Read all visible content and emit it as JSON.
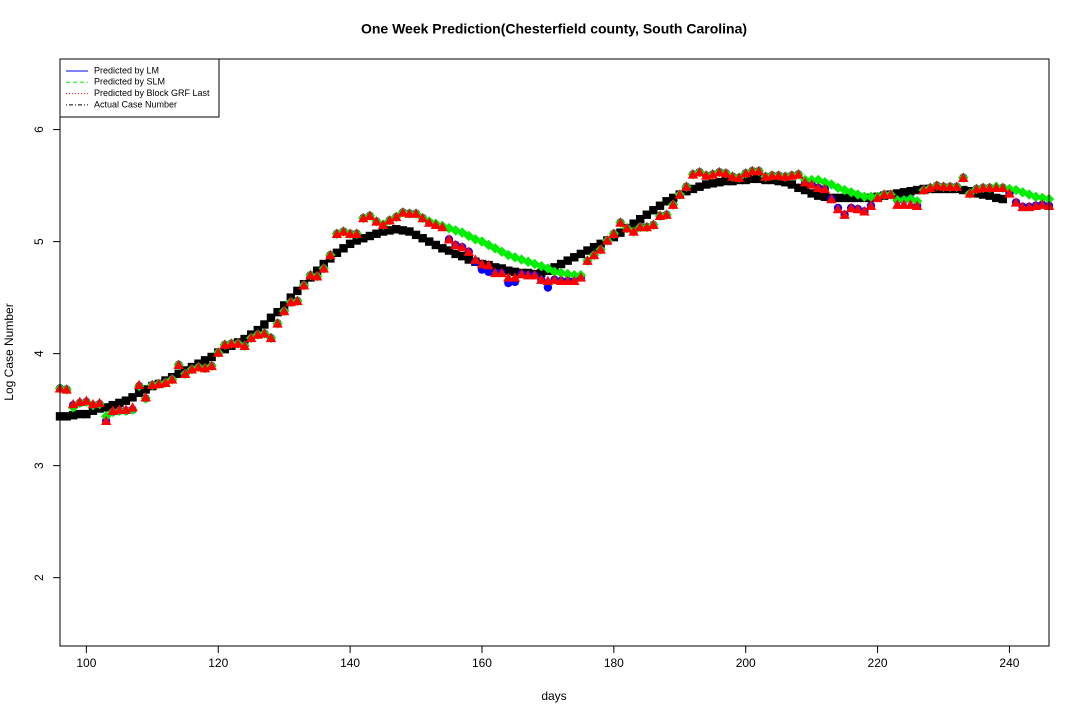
{
  "chart_data": {
    "type": "scatter",
    "title": "One Week Prediction(Chesterfield county, South Carolina)",
    "x_label": "days",
    "y_label": "Log Case Number",
    "xlim": [
      96,
      246
    ],
    "ylim": [
      1.39,
      6.63
    ],
    "xticks": [
      100,
      120,
      140,
      160,
      180,
      200,
      220,
      240
    ],
    "yticks": [
      2,
      3,
      4,
      5,
      6
    ],
    "legend": "top-left",
    "x": [
      96,
      97,
      98,
      99,
      100,
      101,
      102,
      103,
      104,
      105,
      106,
      107,
      108,
      109,
      110,
      111,
      112,
      113,
      114,
      115,
      116,
      117,
      118,
      119,
      120,
      121,
      122,
      123,
      124,
      125,
      126,
      127,
      128,
      129,
      130,
      131,
      132,
      133,
      134,
      135,
      136,
      137,
      138,
      139,
      140,
      141,
      142,
      143,
      144,
      145,
      146,
      147,
      148,
      149,
      150,
      151,
      152,
      153,
      154,
      155,
      156,
      157,
      158,
      159,
      160,
      161,
      162,
      163,
      164,
      165,
      166,
      167,
      168,
      169,
      170,
      171,
      172,
      173,
      174,
      175,
      176,
      177,
      178,
      179,
      180,
      181,
      182,
      183,
      184,
      185,
      186,
      187,
      188,
      189,
      190,
      191,
      192,
      193,
      194,
      195,
      196,
      197,
      198,
      199,
      200,
      201,
      202,
      203,
      204,
      205,
      206,
      207,
      208,
      209,
      210,
      211,
      212,
      213,
      214,
      215,
      216,
      217,
      218,
      219,
      220,
      221,
      222,
      223,
      224,
      225,
      226,
      227,
      228,
      229,
      230,
      231,
      232,
      233,
      234,
      235,
      236,
      237,
      238,
      239,
      240,
      241,
      242,
      243,
      244,
      245,
      246
    ],
    "series": [
      {
        "name": "Actual Case Number",
        "color": "black",
        "linestyle": "dotdash",
        "marker": "square",
        "values": [
          3.44,
          3.44,
          3.45,
          3.46,
          3.46,
          3.49,
          3.51,
          3.52,
          3.54,
          3.56,
          3.58,
          3.61,
          3.65,
          3.68,
          3.71,
          3.73,
          3.76,
          3.79,
          3.82,
          3.85,
          3.88,
          3.91,
          3.94,
          3.97,
          4.01,
          4.04,
          4.07,
          4.1,
          4.13,
          4.17,
          4.21,
          4.26,
          4.32,
          4.37,
          4.43,
          4.5,
          4.56,
          4.62,
          4.68,
          4.74,
          4.8,
          4.85,
          4.9,
          4.94,
          4.98,
          5.01,
          5.03,
          5.05,
          5.07,
          5.09,
          5.1,
          5.11,
          5.1,
          5.09,
          5.06,
          5.03,
          5.0,
          4.97,
          4.94,
          4.92,
          4.89,
          4.87,
          4.84,
          4.82,
          4.8,
          4.79,
          4.77,
          4.76,
          4.74,
          4.73,
          4.72,
          4.72,
          4.71,
          4.72,
          4.74,
          4.77,
          4.8,
          4.83,
          4.86,
          4.89,
          4.92,
          4.95,
          4.98,
          5.01,
          5.04,
          5.08,
          5.12,
          5.16,
          5.2,
          5.24,
          5.28,
          5.32,
          5.36,
          5.39,
          5.42,
          5.45,
          5.47,
          5.49,
          5.51,
          5.52,
          5.53,
          5.54,
          5.54,
          5.55,
          5.55,
          5.56,
          5.56,
          5.55,
          5.55,
          5.54,
          5.53,
          5.51,
          5.48,
          5.46,
          5.43,
          5.41,
          5.4,
          5.39,
          5.39,
          5.39,
          5.39,
          5.39,
          5.39,
          5.39,
          5.4,
          5.41,
          5.42,
          5.43,
          5.44,
          5.45,
          5.46,
          5.47,
          5.47,
          5.47,
          5.47,
          5.47,
          5.47,
          5.46,
          5.45,
          5.43,
          5.42,
          5.41,
          5.39,
          5.38,
          null,
          null,
          null,
          null,
          null,
          null,
          null
        ]
      },
      {
        "name": "Predicted by LM",
        "color": "blue",
        "linestyle": "solid",
        "marker": "circle",
        "values": [
          3.69,
          3.68,
          3.54,
          3.56,
          3.57,
          3.54,
          3.55,
          3.4,
          3.48,
          3.49,
          3.49,
          3.5,
          3.71,
          3.6,
          3.72,
          3.73,
          3.74,
          3.77,
          3.9,
          3.82,
          3.86,
          3.88,
          3.87,
          3.89,
          4.01,
          4.08,
          4.09,
          4.09,
          4.07,
          4.14,
          4.17,
          4.18,
          4.14,
          4.27,
          4.38,
          4.46,
          4.47,
          4.61,
          4.7,
          4.69,
          4.76,
          4.88,
          5.07,
          5.09,
          5.07,
          5.07,
          5.21,
          5.23,
          5.18,
          5.15,
          5.19,
          5.22,
          5.26,
          5.25,
          5.25,
          5.21,
          5.17,
          5.15,
          5.13,
          5.02,
          4.97,
          4.95,
          4.91,
          4.82,
          4.75,
          4.73,
          4.72,
          4.72,
          4.63,
          4.64,
          4.71,
          4.7,
          4.7,
          4.66,
          4.59,
          4.66,
          4.65,
          4.65,
          4.65,
          4.68,
          4.83,
          4.88,
          4.93,
          5.01,
          5.07,
          5.17,
          5.12,
          5.09,
          5.13,
          5.13,
          5.15,
          5.23,
          5.24,
          5.33,
          5.42,
          5.49,
          5.6,
          5.62,
          5.59,
          5.6,
          5.62,
          5.61,
          5.58,
          5.57,
          5.61,
          5.63,
          5.63,
          5.58,
          5.59,
          5.59,
          5.58,
          5.59,
          5.6,
          5.53,
          5.51,
          5.48,
          5.47,
          5.38,
          5.3,
          5.24,
          5.3,
          5.29,
          5.27,
          5.32,
          5.39,
          5.42,
          5.42,
          5.37,
          5.37,
          5.38,
          5.32,
          5.46,
          5.48,
          5.5,
          5.49,
          5.49,
          5.49,
          5.57,
          5.43,
          5.47,
          5.48,
          5.48,
          5.48,
          5.48,
          5.43,
          5.35,
          5.31,
          5.31,
          5.32,
          5.33,
          5.32
        ]
      },
      {
        "name": "Predicted by SLM",
        "color": "#00ee00",
        "linestyle": "dashed",
        "marker": "diamond",
        "values": [
          3.69,
          3.68,
          3.52,
          3.56,
          3.57,
          3.54,
          3.55,
          3.44,
          3.48,
          3.49,
          3.49,
          3.5,
          3.71,
          3.6,
          3.72,
          3.73,
          3.74,
          3.77,
          3.9,
          3.82,
          3.86,
          3.88,
          3.87,
          3.89,
          4.01,
          4.08,
          4.09,
          4.09,
          4.07,
          4.14,
          4.17,
          4.18,
          4.14,
          4.27,
          4.38,
          4.46,
          4.47,
          4.61,
          4.7,
          4.69,
          4.76,
          4.88,
          5.07,
          5.09,
          5.07,
          5.07,
          5.21,
          5.23,
          5.18,
          5.15,
          5.19,
          5.22,
          5.26,
          5.25,
          5.25,
          5.21,
          5.18,
          5.16,
          5.14,
          5.12,
          5.1,
          5.08,
          5.05,
          5.02,
          5.0,
          4.97,
          4.94,
          4.91,
          4.88,
          4.86,
          4.84,
          4.82,
          4.8,
          4.78,
          4.76,
          4.73,
          4.72,
          4.71,
          4.7,
          4.7,
          4.83,
          4.88,
          4.93,
          5.01,
          5.07,
          5.17,
          5.12,
          5.09,
          5.13,
          5.13,
          5.15,
          5.23,
          5.24,
          5.33,
          5.42,
          5.49,
          5.6,
          5.62,
          5.59,
          5.6,
          5.62,
          5.61,
          5.58,
          5.57,
          5.61,
          5.63,
          5.63,
          5.58,
          5.59,
          5.59,
          5.58,
          5.59,
          5.6,
          5.55,
          5.55,
          5.55,
          5.53,
          5.51,
          5.48,
          5.46,
          5.44,
          5.42,
          5.4,
          5.4,
          5.4,
          5.42,
          5.42,
          5.37,
          5.37,
          5.38,
          5.36,
          5.46,
          5.48,
          5.5,
          5.49,
          5.49,
          5.49,
          5.57,
          5.43,
          5.47,
          5.48,
          5.48,
          5.49,
          5.48,
          5.47,
          5.46,
          5.44,
          5.42,
          5.4,
          5.39,
          5.38
        ]
      },
      {
        "name": "Predicted by Block GRF Last",
        "color": "red",
        "linestyle": "dotted",
        "marker": "triangle",
        "values": [
          3.69,
          3.68,
          3.55,
          3.57,
          3.58,
          3.55,
          3.56,
          3.4,
          3.49,
          3.5,
          3.5,
          3.52,
          3.72,
          3.61,
          3.72,
          3.73,
          3.74,
          3.77,
          3.9,
          3.82,
          3.86,
          3.88,
          3.87,
          3.89,
          4.01,
          4.08,
          4.09,
          4.09,
          4.07,
          4.14,
          4.17,
          4.18,
          4.14,
          4.27,
          4.38,
          4.46,
          4.47,
          4.61,
          4.7,
          4.69,
          4.76,
          4.88,
          5.07,
          5.09,
          5.07,
          5.07,
          5.21,
          5.23,
          5.18,
          5.15,
          5.19,
          5.22,
          5.26,
          5.25,
          5.25,
          5.21,
          5.17,
          5.15,
          5.13,
          5.02,
          4.97,
          4.95,
          4.91,
          4.84,
          4.8,
          4.79,
          4.72,
          4.72,
          4.68,
          4.68,
          4.71,
          4.7,
          4.7,
          4.66,
          4.65,
          4.66,
          4.65,
          4.65,
          4.65,
          4.68,
          4.83,
          4.88,
          4.93,
          5.01,
          5.07,
          5.17,
          5.12,
          5.09,
          5.13,
          5.13,
          5.15,
          5.23,
          5.24,
          5.33,
          5.42,
          5.49,
          5.6,
          5.62,
          5.59,
          5.6,
          5.62,
          5.61,
          5.58,
          5.57,
          5.61,
          5.63,
          5.63,
          5.58,
          5.59,
          5.59,
          5.58,
          5.59,
          5.6,
          5.53,
          5.51,
          5.48,
          5.47,
          5.38,
          5.29,
          5.24,
          5.3,
          5.29,
          5.27,
          5.32,
          5.39,
          5.42,
          5.42,
          5.33,
          5.33,
          5.33,
          5.32,
          5.46,
          5.48,
          5.5,
          5.49,
          5.49,
          5.49,
          5.57,
          5.43,
          5.47,
          5.48,
          5.48,
          5.48,
          5.48,
          5.43,
          5.35,
          5.31,
          5.31,
          5.32,
          5.33,
          5.32
        ]
      }
    ]
  }
}
